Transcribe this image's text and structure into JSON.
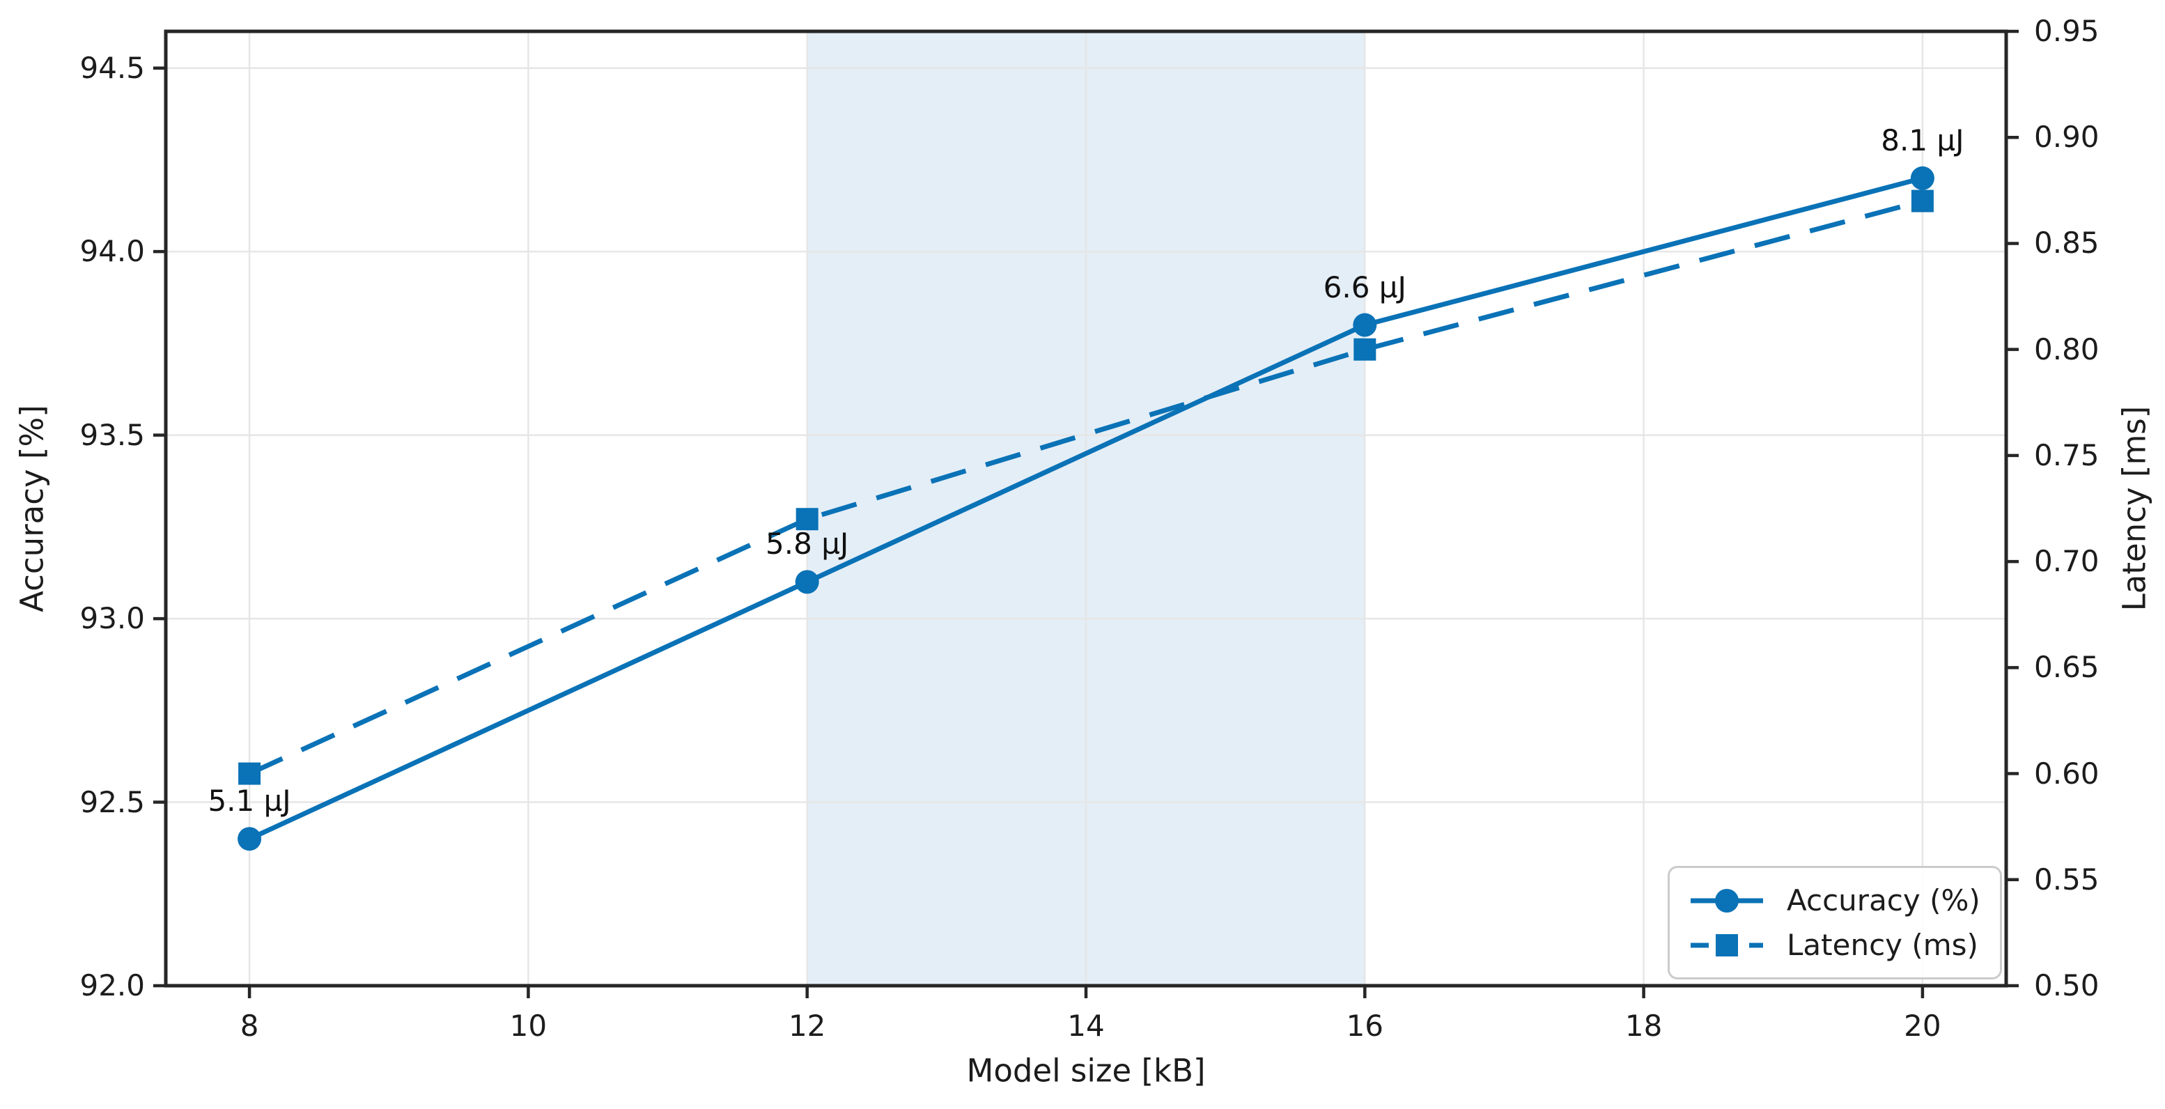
{
  "chart_data": {
    "type": "line",
    "title": "",
    "xlabel": "Model size [kB]",
    "ylabel_left": "Accuracy [%]",
    "ylabel_right": "Latency [ms]",
    "x": [
      8,
      12,
      16,
      20
    ],
    "series": [
      {
        "name": "Accuracy (%)",
        "axis": "left",
        "marker": "circle",
        "line_style": "solid",
        "values": [
          92.4,
          93.1,
          93.8,
          94.2
        ]
      },
      {
        "name": "Latency (ms)",
        "axis": "right",
        "marker": "square",
        "line_style": "dashed",
        "values": [
          0.6,
          0.72,
          0.8,
          0.87
        ]
      }
    ],
    "annotations": [
      {
        "x": 8,
        "anchor_y": 92.4,
        "label": "5.1 µJ"
      },
      {
        "x": 12,
        "anchor_y": 93.1,
        "label": "5.8 µJ"
      },
      {
        "x": 16,
        "anchor_y": 93.8,
        "label": "6.6 µJ"
      },
      {
        "x": 20,
        "anchor_y": 94.2,
        "label": "8.1 µJ"
      }
    ],
    "x_ticks": [
      {
        "v": 8,
        "label": "8"
      },
      {
        "v": 10,
        "label": "10"
      },
      {
        "v": 12,
        "label": "12"
      },
      {
        "v": 14,
        "label": "14"
      },
      {
        "v": 16,
        "label": "16"
      },
      {
        "v": 18,
        "label": "18"
      },
      {
        "v": 20,
        "label": "20"
      }
    ],
    "y_ticks_left": [
      {
        "v": 92.0,
        "label": "92.0"
      },
      {
        "v": 92.5,
        "label": "92.5"
      },
      {
        "v": 93.0,
        "label": "93.0"
      },
      {
        "v": 93.5,
        "label": "93.5"
      },
      {
        "v": 94.0,
        "label": "94.0"
      },
      {
        "v": 94.5,
        "label": "94.5"
      }
    ],
    "y_ticks_right": [
      {
        "v": 0.5,
        "label": "0.50"
      },
      {
        "v": 0.55,
        "label": "0.55"
      },
      {
        "v": 0.6,
        "label": "0.60"
      },
      {
        "v": 0.65,
        "label": "0.65"
      },
      {
        "v": 0.7,
        "label": "0.70"
      },
      {
        "v": 0.75,
        "label": "0.75"
      },
      {
        "v": 0.8,
        "label": "0.80"
      },
      {
        "v": 0.85,
        "label": "0.85"
      },
      {
        "v": 0.9,
        "label": "0.90"
      },
      {
        "v": 0.95,
        "label": "0.95"
      }
    ],
    "xlim": [
      7.4,
      20.6
    ],
    "ylim_left": [
      92.0,
      94.6
    ],
    "ylim_right": [
      0.5,
      0.95
    ],
    "shaded_region": {
      "x_start": 12,
      "x_end": 16,
      "color": "#e4eef7"
    },
    "grid": true,
    "legend": {
      "position": "lower right",
      "items": [
        "Accuracy (%)",
        "Latency (ms)"
      ]
    },
    "colors": {
      "series": "#0a72b6",
      "grid": "#e6e6e6",
      "spine": "#262626",
      "text": "#1c1c1c"
    }
  }
}
